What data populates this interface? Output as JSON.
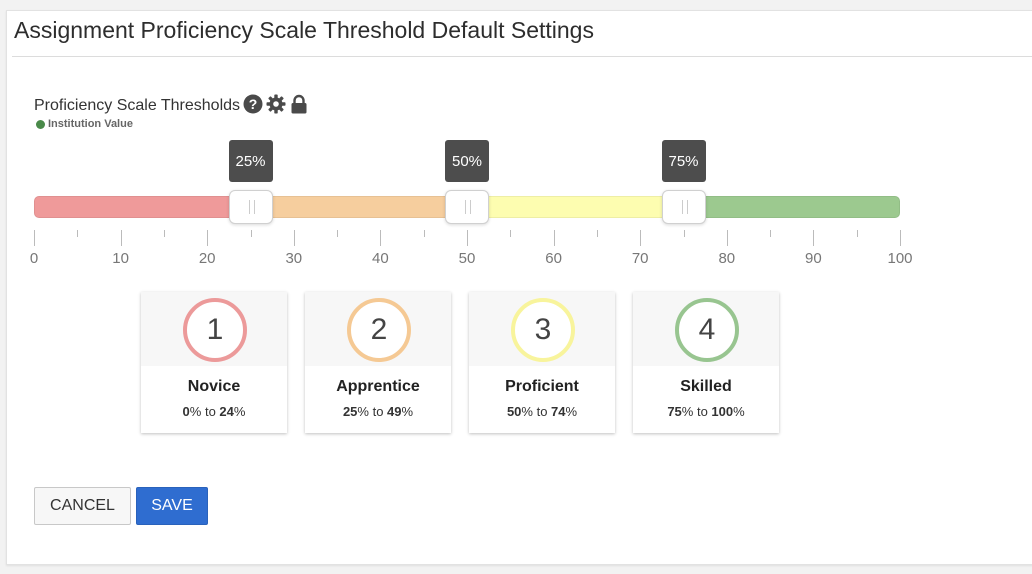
{
  "page": {
    "title": "Assignment Proficiency Scale Threshold Default Settings"
  },
  "section": {
    "label": "Proficiency Scale Thresholds",
    "icons": [
      "help-icon",
      "gear-icon",
      "lock-icon"
    ],
    "institution_label": "Institution Value",
    "institution_dot_color": "#4a8a4a"
  },
  "slider": {
    "min": 0,
    "max": 100,
    "handles": [
      {
        "value": 25,
        "label": "25%"
      },
      {
        "value": 50,
        "label": "50%"
      },
      {
        "value": 75,
        "label": "75%"
      }
    ],
    "segment_colors": [
      "#ef9a9a",
      "#f6ce9e",
      "#fdfdb0",
      "#9cc98f"
    ],
    "tick_labels": [
      "0",
      "10",
      "20",
      "30",
      "40",
      "50",
      "60",
      "70",
      "80",
      "90",
      "100"
    ]
  },
  "levels": [
    {
      "number": "1",
      "name": "Novice",
      "from": "0",
      "to": "24",
      "color": "#ec9a9a"
    },
    {
      "number": "2",
      "name": "Apprentice",
      "from": "25",
      "to": "49",
      "color": "#f5c994"
    },
    {
      "number": "3",
      "name": "Proficient",
      "from": "50",
      "to": "74",
      "color": "#f8f49c"
    },
    {
      "number": "4",
      "name": "Skilled",
      "from": "75",
      "to": "100",
      "color": "#98c590"
    }
  ],
  "range_sep": "to",
  "pct": "%",
  "buttons": {
    "cancel": "CANCEL",
    "save": "SAVE"
  }
}
